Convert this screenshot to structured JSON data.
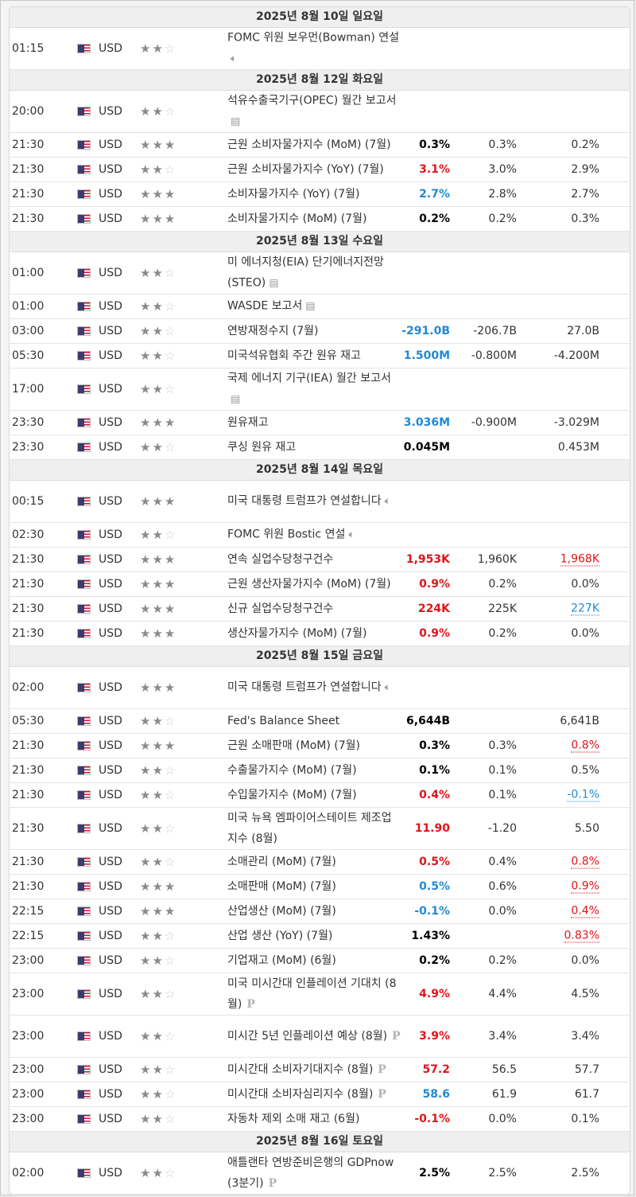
{
  "sections": [
    {
      "date": "2025년 8월 10일 일요일",
      "rows": [
        {
          "time": "01:15",
          "currency": "USD",
          "stars": 2,
          "event": "FOMC 위원 보우먼(Bowman) 연설",
          "icon": "speaker-icon",
          "actual": "",
          "actual_color": "",
          "forecast": "",
          "previous": "",
          "previous_color": "",
          "tall": true
        }
      ]
    },
    {
      "date": "2025년 8월 12일 화요일",
      "rows": [
        {
          "time": "20:00",
          "currency": "USD",
          "stars": 2,
          "event": "석유수출국기구(OPEC) 월간 보고서",
          "icon": "report-icon",
          "actual": "",
          "actual_color": "",
          "forecast": "",
          "previous": "",
          "previous_color": "",
          "tall": true
        },
        {
          "time": "21:30",
          "currency": "USD",
          "stars": 3,
          "event": "근원 소비자물가지수 (MoM) (7월)",
          "icon": "",
          "actual": "0.3%",
          "actual_color": "black",
          "forecast": "0.3%",
          "previous": "0.2%",
          "previous_color": ""
        },
        {
          "time": "21:30",
          "currency": "USD",
          "stars": 2,
          "event": "근원 소비자물가지수 (YoY) (7월)",
          "icon": "",
          "actual": "3.1%",
          "actual_color": "red",
          "forecast": "3.0%",
          "previous": "2.9%",
          "previous_color": ""
        },
        {
          "time": "21:30",
          "currency": "USD",
          "stars": 3,
          "event": "소비자물가지수 (YoY) (7월)",
          "icon": "",
          "actual": "2.7%",
          "actual_color": "blue",
          "forecast": "2.8%",
          "previous": "2.7%",
          "previous_color": ""
        },
        {
          "time": "21:30",
          "currency": "USD",
          "stars": 3,
          "event": "소비자물가지수 (MoM) (7월)",
          "icon": "",
          "actual": "0.2%",
          "actual_color": "black",
          "forecast": "0.2%",
          "previous": "0.3%",
          "previous_color": ""
        }
      ]
    },
    {
      "date": "2025년 8월 13일 수요일",
      "rows": [
        {
          "time": "01:00",
          "currency": "USD",
          "stars": 2,
          "event": "미 에너지청(EIA) 단기에너지전망(STEO)",
          "icon": "report-icon",
          "actual": "",
          "actual_color": "",
          "forecast": "",
          "previous": "",
          "previous_color": "",
          "tall": true
        },
        {
          "time": "01:00",
          "currency": "USD",
          "stars": 2,
          "event": "WASDE 보고서",
          "icon": "report-icon",
          "actual": "",
          "actual_color": "",
          "forecast": "",
          "previous": "",
          "previous_color": ""
        },
        {
          "time": "03:00",
          "currency": "USD",
          "stars": 2,
          "event": "연방재정수지 (7월)",
          "icon": "",
          "actual": "-291.0B",
          "actual_color": "blue",
          "forecast": "-206.7B",
          "previous": "27.0B",
          "previous_color": ""
        },
        {
          "time": "05:30",
          "currency": "USD",
          "stars": 2,
          "event": "미국석유협회 주간 원유 재고",
          "icon": "",
          "actual": "1.500M",
          "actual_color": "blue",
          "forecast": "-0.800M",
          "previous": "-4.200M",
          "previous_color": ""
        },
        {
          "time": "17:00",
          "currency": "USD",
          "stars": 2,
          "event": "국제 에너지 기구(IEA) 월간 보고서",
          "icon": "report-icon",
          "actual": "",
          "actual_color": "",
          "forecast": "",
          "previous": "",
          "previous_color": "",
          "tall": true
        },
        {
          "time": "23:30",
          "currency": "USD",
          "stars": 3,
          "event": "원유재고",
          "icon": "",
          "actual": "3.036M",
          "actual_color": "blue",
          "forecast": "-0.900M",
          "previous": "-3.029M",
          "previous_color": ""
        },
        {
          "time": "23:30",
          "currency": "USD",
          "stars": 2,
          "event": "쿠싱 원유 재고",
          "icon": "",
          "actual": "0.045M",
          "actual_color": "black",
          "forecast": "",
          "previous": "0.453M",
          "previous_color": ""
        }
      ]
    },
    {
      "date": "2025년 8월 14일 목요일",
      "rows": [
        {
          "time": "00:15",
          "currency": "USD",
          "stars": 3,
          "event": "미국 대통령 트럼프가 연설합니다",
          "icon": "speaker-icon",
          "actual": "",
          "actual_color": "",
          "forecast": "",
          "previous": "",
          "previous_color": "",
          "tall": true
        },
        {
          "time": "02:30",
          "currency": "USD",
          "stars": 2,
          "event": "FOMC 위원 Bostic 연설",
          "icon": "speaker-icon",
          "actual": "",
          "actual_color": "",
          "forecast": "",
          "previous": "",
          "previous_color": ""
        },
        {
          "time": "21:30",
          "currency": "USD",
          "stars": 3,
          "event": "연속 실업수당청구건수",
          "icon": "",
          "actual": "1,953K",
          "actual_color": "red",
          "forecast": "1,960K",
          "previous": "1,968K",
          "previous_color": "red"
        },
        {
          "time": "21:30",
          "currency": "USD",
          "stars": 3,
          "event": "근원 생산자물가지수 (MoM) (7월)",
          "icon": "",
          "actual": "0.9%",
          "actual_color": "red",
          "forecast": "0.2%",
          "previous": "0.0%",
          "previous_color": ""
        },
        {
          "time": "21:30",
          "currency": "USD",
          "stars": 3,
          "event": "신규 실업수당청구건수",
          "icon": "",
          "actual": "224K",
          "actual_color": "red",
          "forecast": "225K",
          "previous": "227K",
          "previous_color": "blue"
        },
        {
          "time": "21:30",
          "currency": "USD",
          "stars": 3,
          "event": "생산자물가지수 (MoM) (7월)",
          "icon": "",
          "actual": "0.9%",
          "actual_color": "red",
          "forecast": "0.2%",
          "previous": "0.0%",
          "previous_color": ""
        }
      ]
    },
    {
      "date": "2025년 8월 15일 금요일",
      "rows": [
        {
          "time": "02:00",
          "currency": "USD",
          "stars": 3,
          "event": "미국 대통령 트럼프가 연설합니다",
          "icon": "speaker-icon",
          "actual": "",
          "actual_color": "",
          "forecast": "",
          "previous": "",
          "previous_color": "",
          "tall": true
        },
        {
          "time": "05:30",
          "currency": "USD",
          "stars": 2,
          "event": "Fed's Balance Sheet",
          "icon": "",
          "actual": "6,644B",
          "actual_color": "black",
          "forecast": "",
          "previous": "6,641B",
          "previous_color": ""
        },
        {
          "time": "21:30",
          "currency": "USD",
          "stars": 3,
          "event": "근원 소매판매 (MoM) (7월)",
          "icon": "",
          "actual": "0.3%",
          "actual_color": "black",
          "forecast": "0.3%",
          "previous": "0.8%",
          "previous_color": "red"
        },
        {
          "time": "21:30",
          "currency": "USD",
          "stars": 2,
          "event": "수출물가지수 (MoM) (7월)",
          "icon": "",
          "actual": "0.1%",
          "actual_color": "black",
          "forecast": "0.1%",
          "previous": "0.5%",
          "previous_color": ""
        },
        {
          "time": "21:30",
          "currency": "USD",
          "stars": 2,
          "event": "수입물가지수 (MoM) (7월)",
          "icon": "",
          "actual": "0.4%",
          "actual_color": "red",
          "forecast": "0.1%",
          "previous": "-0.1%",
          "previous_color": "blue"
        },
        {
          "time": "21:30",
          "currency": "USD",
          "stars": 2,
          "event": "미국 뉴욕 엠파이어스테이트 제조업지수 (8월)",
          "icon": "",
          "actual": "11.90",
          "actual_color": "red",
          "forecast": "-1.20",
          "previous": "5.50",
          "previous_color": "",
          "tall": true
        },
        {
          "time": "21:30",
          "currency": "USD",
          "stars": 2,
          "event": "소매관리 (MoM) (7월)",
          "icon": "",
          "actual": "0.5%",
          "actual_color": "red",
          "forecast": "0.4%",
          "previous": "0.8%",
          "previous_color": "red"
        },
        {
          "time": "21:30",
          "currency": "USD",
          "stars": 3,
          "event": "소매판매 (MoM) (7월)",
          "icon": "",
          "actual": "0.5%",
          "actual_color": "blue",
          "forecast": "0.6%",
          "previous": "0.9%",
          "previous_color": "red"
        },
        {
          "time": "22:15",
          "currency": "USD",
          "stars": 3,
          "event": "산업생산 (MoM) (7월)",
          "icon": "",
          "actual": "-0.1%",
          "actual_color": "blue",
          "forecast": "0.0%",
          "previous": "0.4%",
          "previous_color": "red"
        },
        {
          "time": "22:15",
          "currency": "USD",
          "stars": 2,
          "event": "산업 생산 (YoY) (7월)",
          "icon": "",
          "actual": "1.43%",
          "actual_color": "black",
          "forecast": "",
          "previous": "0.83%",
          "previous_color": "red"
        },
        {
          "time": "23:00",
          "currency": "USD",
          "stars": 2,
          "event": "기업재고 (MoM) (6월)",
          "icon": "",
          "actual": "0.2%",
          "actual_color": "black",
          "forecast": "0.2%",
          "previous": "0.0%",
          "previous_color": ""
        },
        {
          "time": "23:00",
          "currency": "USD",
          "stars": 2,
          "event": "미국 미시간대 인플레이션 기대치 (8월)",
          "icon": "preliminary-icon",
          "actual": "4.9%",
          "actual_color": "red",
          "forecast": "4.4%",
          "previous": "4.5%",
          "previous_color": "",
          "tall": true
        },
        {
          "time": "23:00",
          "currency": "USD",
          "stars": 2,
          "event": "미시간 5년 인플레이션 예상 (8월)",
          "icon": "preliminary-icon",
          "actual": "3.9%",
          "actual_color": "red",
          "forecast": "3.4%",
          "previous": "3.4%",
          "previous_color": "",
          "tall": true
        },
        {
          "time": "23:00",
          "currency": "USD",
          "stars": 2,
          "event": "미시간대 소비자기대지수 (8월)",
          "icon": "preliminary-icon",
          "actual": "57.2",
          "actual_color": "red",
          "forecast": "56.5",
          "previous": "57.7",
          "previous_color": ""
        },
        {
          "time": "23:00",
          "currency": "USD",
          "stars": 2,
          "event": "미시간대 소비자심리지수 (8월)",
          "icon": "preliminary-icon",
          "actual": "58.6",
          "actual_color": "blue",
          "forecast": "61.9",
          "previous": "61.7",
          "previous_color": ""
        },
        {
          "time": "23:00",
          "currency": "USD",
          "stars": 2,
          "event": "자동차 제외 소매 재고 (6월)",
          "icon": "",
          "actual": "-0.1%",
          "actual_color": "red",
          "forecast": "0.0%",
          "previous": "0.1%",
          "previous_color": ""
        }
      ]
    },
    {
      "date": "2025년 8월 16일 토요일",
      "rows": [
        {
          "time": "02:00",
          "currency": "USD",
          "stars": 2,
          "event": "애틀랜타 연방준비은행의 GDPnow (3분기)",
          "icon": "preliminary-icon",
          "actual": "2.5%",
          "actual_color": "black",
          "forecast": "2.5%",
          "previous": "2.5%",
          "previous_color": "",
          "tall": true
        }
      ]
    }
  ],
  "colors": {
    "red": "#e0141a",
    "blue": "#1f8ad4"
  }
}
